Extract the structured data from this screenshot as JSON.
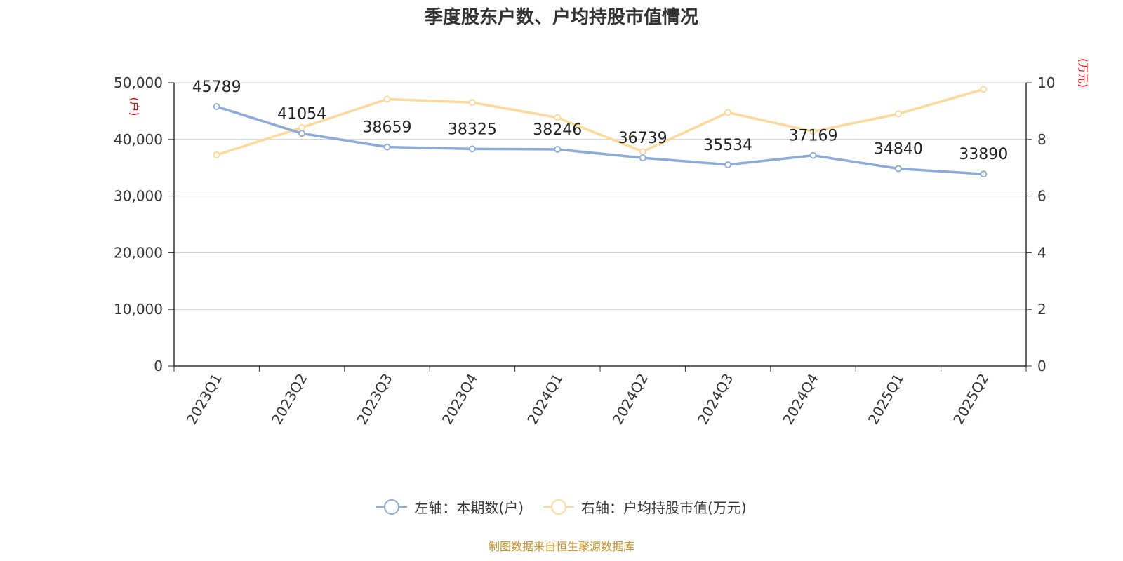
{
  "title": "季度股东户数、户均持股市值情况",
  "source": "制图数据来自恒生聚源数据库",
  "colors": {
    "left_series": "#8dabd9",
    "right_series": "#fcd99a",
    "axis_unit": "#ff0000",
    "source": "#c8922a"
  },
  "chart_data": {
    "type": "line",
    "title": "季度股东户数、户均持股市值情况",
    "categories": [
      "2023Q1",
      "2023Q2",
      "2023Q3",
      "2023Q4",
      "2024Q1",
      "2024Q2",
      "2024Q3",
      "2024Q4",
      "2025Q1",
      "2025Q2"
    ],
    "left_axis": {
      "unit": "(户)",
      "range": [
        0,
        50000
      ],
      "ticks": [
        "0",
        "10,000",
        "20,000",
        "30,000",
        "40,000",
        "50,000"
      ]
    },
    "right_axis": {
      "unit": "(万元)",
      "range": [
        0,
        10
      ],
      "ticks": [
        "0",
        "2",
        "4",
        "6",
        "8",
        "10"
      ]
    },
    "series": [
      {
        "name": "左轴：本期数(户)",
        "axis": "left",
        "values": [
          45789,
          41054,
          38659,
          38325,
          38246,
          36739,
          35534,
          37169,
          34840,
          33890
        ],
        "labels": [
          "45789",
          "41054",
          "38659",
          "38325",
          "38246",
          "36739",
          "35534",
          "37169",
          "34840",
          "33890"
        ]
      },
      {
        "name": "右轴：户均持股市值(万元)",
        "axis": "right",
        "values": [
          7.45,
          8.42,
          9.42,
          9.3,
          8.77,
          7.57,
          8.95,
          8.28,
          8.9,
          9.77
        ]
      }
    ],
    "grid": true,
    "legend_position": "bottom"
  }
}
